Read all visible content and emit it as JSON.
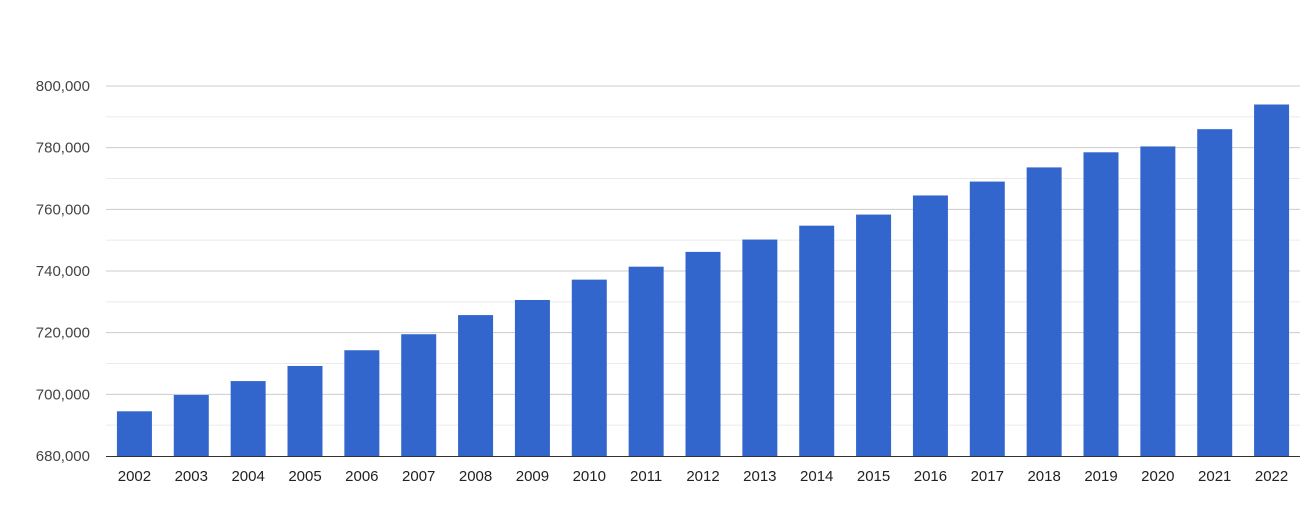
{
  "chart_data": {
    "type": "bar",
    "title": "",
    "xlabel": "",
    "ylabel": "",
    "categories": [
      "2002",
      "2003",
      "2004",
      "2005",
      "2006",
      "2007",
      "2008",
      "2009",
      "2010",
      "2011",
      "2012",
      "2013",
      "2014",
      "2015",
      "2016",
      "2017",
      "2018",
      "2019",
      "2020",
      "2021",
      "2022"
    ],
    "series": [
      {
        "values": [
          694500,
          699800,
          704300,
          709200,
          714300,
          719500,
          725700,
          730600,
          737200,
          741400,
          746200,
          750200,
          754700,
          758300,
          764500,
          769000,
          773600,
          778500,
          780400,
          786000,
          794000
        ]
      }
    ],
    "ylim": [
      680000,
      800000
    ],
    "yticks": [
      {
        "value": 680000,
        "label": "680,000"
      },
      {
        "value": 700000,
        "label": "700,000"
      },
      {
        "value": 720000,
        "label": "720,000"
      },
      {
        "value": 740000,
        "label": "740,000"
      },
      {
        "value": 760000,
        "label": "760,000"
      },
      {
        "value": 780000,
        "label": "780,000"
      },
      {
        "value": 800000,
        "label": "800,000"
      }
    ],
    "minor_grid_step": 10000,
    "grid": true,
    "legend": "none",
    "colors": {
      "bar": "#3366cc",
      "major_grid": "#cccccc",
      "minor_grid": "#ebebeb",
      "axis": "#333333"
    }
  }
}
